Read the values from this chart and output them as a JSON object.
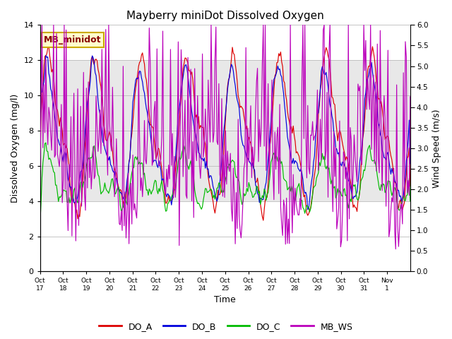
{
  "title": "Mayberry miniDot Dissolved Oxygen",
  "xlabel": "Time",
  "ylabel_left": "Dissolved Oxygen (mg/l)",
  "ylabel_right": "Wind Speed (m/s)",
  "ylim_left": [
    0,
    14
  ],
  "ylim_right": [
    0.0,
    6.0
  ],
  "yticks_left": [
    0,
    2,
    4,
    6,
    8,
    10,
    12,
    14
  ],
  "yticks_right": [
    0.0,
    0.5,
    1.0,
    1.5,
    2.0,
    2.5,
    3.0,
    3.5,
    4.0,
    4.5,
    5.0,
    5.5,
    6.0
  ],
  "shade_band": [
    4,
    12
  ],
  "x_tick_labels": [
    "Oct 17",
    "Oct 18",
    "Oct 19",
    "Oct 20",
    "Oct 21",
    "Oct 22",
    "Oct 23",
    "Oct 24",
    "Oct 25",
    "Oct 26",
    "Oct 27",
    "Oct 28",
    "Oct 29",
    "Oct 30",
    "Oct 31",
    "Nov 1"
  ],
  "legend_label": "MB_minidot",
  "legend_items": [
    {
      "label": "DO_A",
      "color": "#dd0000"
    },
    {
      "label": "DO_B",
      "color": "#0000dd"
    },
    {
      "label": "DO_C",
      "color": "#00bb00"
    },
    {
      "label": "MB_WS",
      "color": "#bb00bb"
    }
  ],
  "background_color": "#ffffff",
  "grid_color": "#bbbbbb",
  "shade_color": "#e8e8e8",
  "annotation_facecolor": "#ffffcc",
  "annotation_edgecolor": "#ccaa00",
  "annotation_textcolor": "#880000",
  "figsize": [
    6.4,
    4.8
  ],
  "dpi": 100
}
